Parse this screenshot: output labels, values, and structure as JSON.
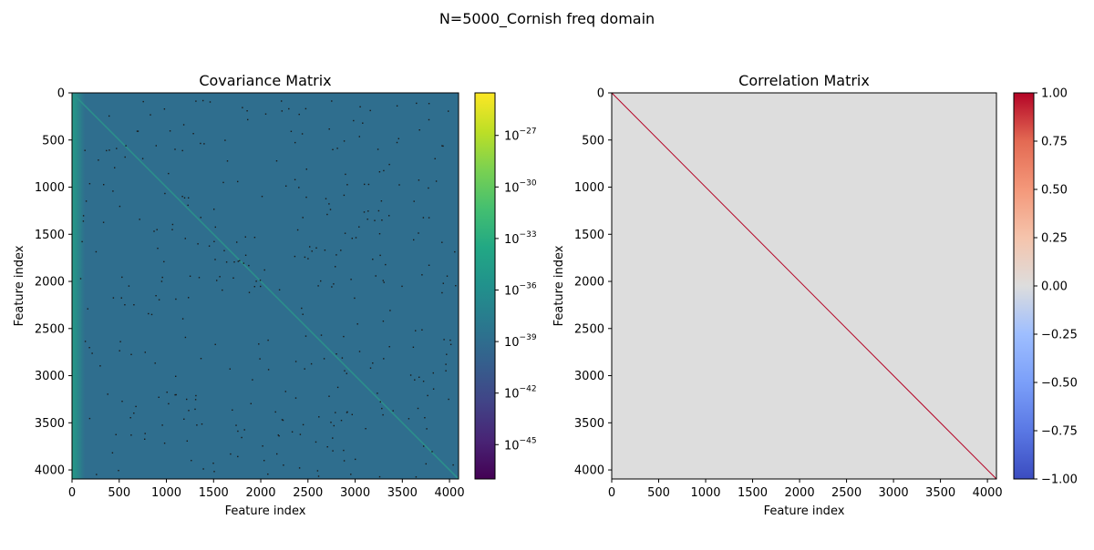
{
  "suptitle": "N=5000_Cornish freq domain",
  "chart_data": [
    {
      "type": "heatmap",
      "title": "Covariance Matrix",
      "xlabel": "Feature index",
      "ylabel": "Feature index",
      "matrix_size": 4096,
      "xlim": [
        0,
        4096
      ],
      "ylim": [
        4096,
        0
      ],
      "x_ticks": [
        0,
        500,
        1000,
        1500,
        2000,
        2500,
        3000,
        3500,
        4000
      ],
      "y_ticks": [
        0,
        500,
        1000,
        1500,
        2000,
        2500,
        3000,
        3500,
        4000
      ],
      "colormap": "viridis",
      "color_scale": "log",
      "colorbar_range": [
        1e-47,
        3e-25
      ],
      "colorbar_tick_exponents": [
        -27,
        -30,
        -33,
        -36,
        -39,
        -42,
        -45
      ],
      "colorbar_tick_base": "10",
      "offdiag_color": "#2f6e8e",
      "diag_color": "#2c8f8c",
      "left_edge_color": "#23a186",
      "speck_color": "#1a1a1a"
    },
    {
      "type": "heatmap",
      "title": "Correlation Matrix",
      "xlabel": "Feature index",
      "ylabel": "Feature index",
      "matrix_size": 4096,
      "xlim": [
        0,
        4096
      ],
      "ylim": [
        4096,
        0
      ],
      "x_ticks": [
        0,
        500,
        1000,
        1500,
        2000,
        2500,
        3000,
        3500,
        4000
      ],
      "y_ticks": [
        0,
        500,
        1000,
        1500,
        2000,
        2500,
        3000,
        3500,
        4000
      ],
      "colormap": "coolwarm",
      "color_scale": "linear",
      "colorbar_range": [
        -1.0,
        1.0
      ],
      "colorbar_ticks": [
        "1.00",
        "0.75",
        "0.50",
        "0.25",
        "0.00",
        "−0.25",
        "−0.50",
        "−0.75",
        "−1.00"
      ],
      "offdiag_value": 0.0,
      "offdiag_color": "#dddddd",
      "diag_value": 1.0,
      "diag_color": "#b40426"
    }
  ]
}
